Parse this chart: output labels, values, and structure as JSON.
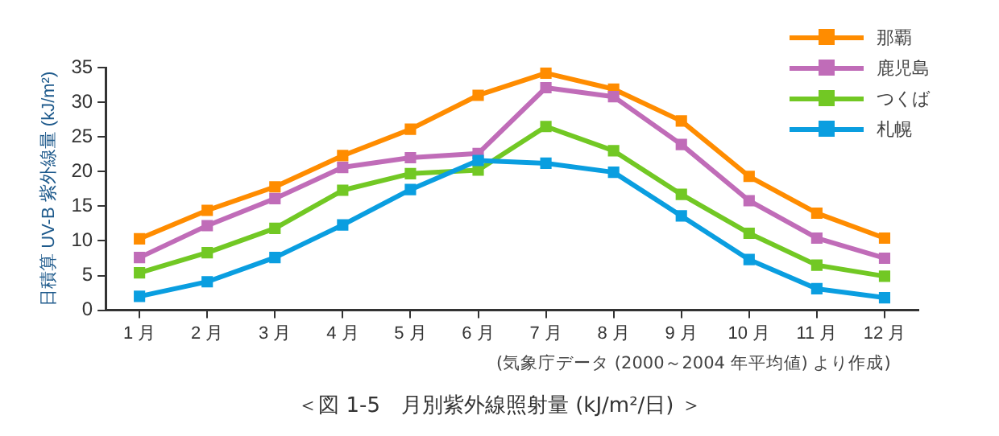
{
  "chart_data": {
    "type": "line",
    "title": "＜図 1-5　月別紫外線照射量 (kJ/m²/日) ＞",
    "ylabel": "日積算 UV-B 紫外線量 (kJ/m²)",
    "annotations": [
      "(気象庁データ (2000～2004 年平均値) より作成)"
    ],
    "categories": [
      "1 月",
      "2 月",
      "3 月",
      "4 月",
      "5 月",
      "6 月",
      "7 月",
      "8 月",
      "9 月",
      "10 月",
      "11 月",
      "12 月"
    ],
    "series": [
      {
        "name": "那覇",
        "color": "#ff8c00",
        "values": [
          10.3,
          14.4,
          17.8,
          22.3,
          26.1,
          31.0,
          34.2,
          31.9,
          27.3,
          19.3,
          14.0,
          10.4
        ]
      },
      {
        "name": "鹿児島",
        "color": "#c06cb8",
        "values": [
          7.6,
          12.2,
          16.1,
          20.6,
          22.0,
          22.6,
          32.1,
          30.8,
          23.9,
          15.8,
          10.4,
          7.5
        ]
      },
      {
        "name": "つくば",
        "color": "#72c824",
        "values": [
          5.4,
          8.3,
          11.8,
          17.3,
          19.7,
          20.2,
          26.5,
          23.0,
          16.7,
          11.1,
          6.5,
          4.9
        ]
      },
      {
        "name": "札幌",
        "color": "#0a9ee0",
        "values": [
          2.0,
          4.1,
          7.6,
          12.3,
          17.4,
          21.6,
          21.2,
          19.9,
          13.6,
          7.3,
          3.1,
          1.8
        ]
      }
    ],
    "ylim": [
      0,
      35
    ],
    "yticks": [
      0,
      5,
      10,
      15,
      20,
      25,
      30,
      35
    ],
    "grid": false,
    "legend": "top right",
    "marker": "square",
    "line_style": "solid"
  }
}
